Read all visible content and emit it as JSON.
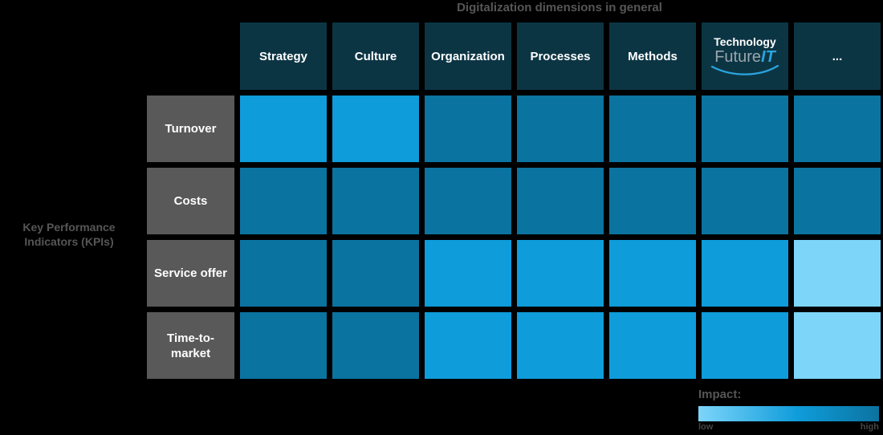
{
  "title": "Digitalization dimensions in general",
  "row_axis": {
    "line1": "Key Performance",
    "line2": "Indicators (KPIs)"
  },
  "columns": [
    "Strategy",
    "Culture",
    "Organization",
    "Processes",
    "Methods",
    "Technology",
    "..."
  ],
  "technology_logo": {
    "top": "Technology",
    "brand_gray": "Future",
    "brand_blue": "IT"
  },
  "rows": [
    {
      "label": "Turnover",
      "impacts": [
        "medium",
        "medium",
        "high",
        "high",
        "high",
        "high",
        "high"
      ]
    },
    {
      "label": "Costs",
      "impacts": [
        "high",
        "high",
        "high",
        "high",
        "high",
        "high",
        "high"
      ]
    },
    {
      "label": "Service offer",
      "impacts": [
        "high",
        "high",
        "medium",
        "medium",
        "medium",
        "medium",
        "low"
      ]
    },
    {
      "label": "Time-to-market",
      "impacts": [
        "high",
        "high",
        "medium",
        "medium",
        "medium",
        "medium",
        "low"
      ]
    }
  ],
  "impact_colors": {
    "low": "#7dd5fa",
    "medium": "#0f9cda",
    "high": "#0b73a0"
  },
  "legend": {
    "title": "Impact:",
    "low_label": "low",
    "high_label": "high"
  },
  "theme": {
    "background": "#000000",
    "header_bg": "#0c3544",
    "row_label_bg": "#595959",
    "muted_text": "#565656",
    "logo_gray": "#9aa6ad",
    "logo_blue": "#2aa4dd"
  },
  "chart_data": {
    "type": "heatmap",
    "title": "Digitalization dimensions in general",
    "x_categories": [
      "Strategy",
      "Culture",
      "Organization",
      "Processes",
      "Methods",
      "Technology (FutureIT)",
      "..."
    ],
    "y_categories": [
      "Turnover",
      "Costs",
      "Service offer",
      "Time-to-market"
    ],
    "y_axis_label": "Key Performance Indicators (KPIs)",
    "values": [
      [
        "medium",
        "medium",
        "high",
        "high",
        "high",
        "high",
        "high"
      ],
      [
        "high",
        "high",
        "high",
        "high",
        "high",
        "high",
        "high"
      ],
      [
        "high",
        "high",
        "medium",
        "medium",
        "medium",
        "medium",
        "low"
      ],
      [
        "high",
        "high",
        "medium",
        "medium",
        "medium",
        "medium",
        "low"
      ]
    ],
    "value_scale": [
      "low",
      "medium",
      "high"
    ],
    "legend": {
      "title": "Impact:",
      "min_label": "low",
      "max_label": "high",
      "position": "bottom-right"
    },
    "grid": false
  }
}
